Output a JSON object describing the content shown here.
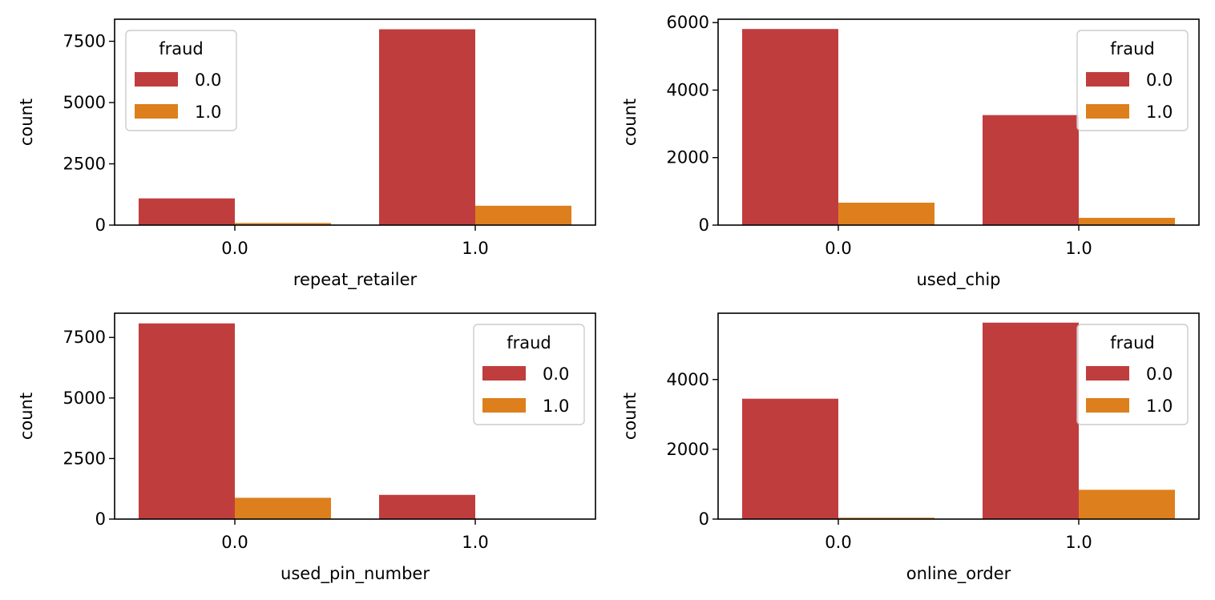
{
  "chart_data": [
    {
      "type": "bar",
      "categories": [
        "0.0",
        "1.0"
      ],
      "series": [
        {
          "name": "0.0",
          "values": [
            1090,
            7990
          ]
        },
        {
          "name": "1.0",
          "values": [
            85,
            790
          ]
        }
      ],
      "xlabel": "repeat_retailer",
      "ylabel": "count",
      "ylim": [
        0,
        8400
      ],
      "yticks": [
        0,
        2500,
        5000,
        7500
      ],
      "legend": {
        "title": "fraud",
        "placement": "upper-left"
      }
    },
    {
      "type": "bar",
      "categories": [
        "0.0",
        "1.0"
      ],
      "series": [
        {
          "name": "0.0",
          "values": [
            5810,
            3260
          ]
        },
        {
          "name": "1.0",
          "values": [
            665,
            215
          ]
        }
      ],
      "xlabel": "used_chip",
      "ylabel": "count",
      "ylim": [
        0,
        6100
      ],
      "yticks": [
        0,
        2000,
        4000,
        6000
      ],
      "legend": {
        "title": "fraud",
        "placement": "upper-right"
      }
    },
    {
      "type": "bar",
      "categories": [
        "0.0",
        "1.0"
      ],
      "series": [
        {
          "name": "0.0",
          "values": [
            8080,
            1000
          ]
        },
        {
          "name": "1.0",
          "values": [
            880,
            4
          ]
        }
      ],
      "xlabel": "used_pin_number",
      "ylabel": "count",
      "ylim": [
        0,
        8500
      ],
      "yticks": [
        0,
        2500,
        5000,
        7500
      ],
      "legend": {
        "title": "fraud",
        "placement": "upper-right"
      }
    },
    {
      "type": "bar",
      "categories": [
        "0.0",
        "1.0"
      ],
      "series": [
        {
          "name": "0.0",
          "values": [
            3450,
            5630
          ]
        },
        {
          "name": "1.0",
          "values": [
            40,
            840
          ]
        }
      ],
      "xlabel": "online_order",
      "ylabel": "count",
      "ylim": [
        0,
        5900
      ],
      "yticks": [
        0,
        2000,
        4000
      ],
      "legend": {
        "title": "fraud",
        "placement": "upper-right"
      }
    }
  ],
  "colors": {
    "series_0": "#c03d3e",
    "series_1": "#dd7f1c",
    "axes": "#000000"
  }
}
